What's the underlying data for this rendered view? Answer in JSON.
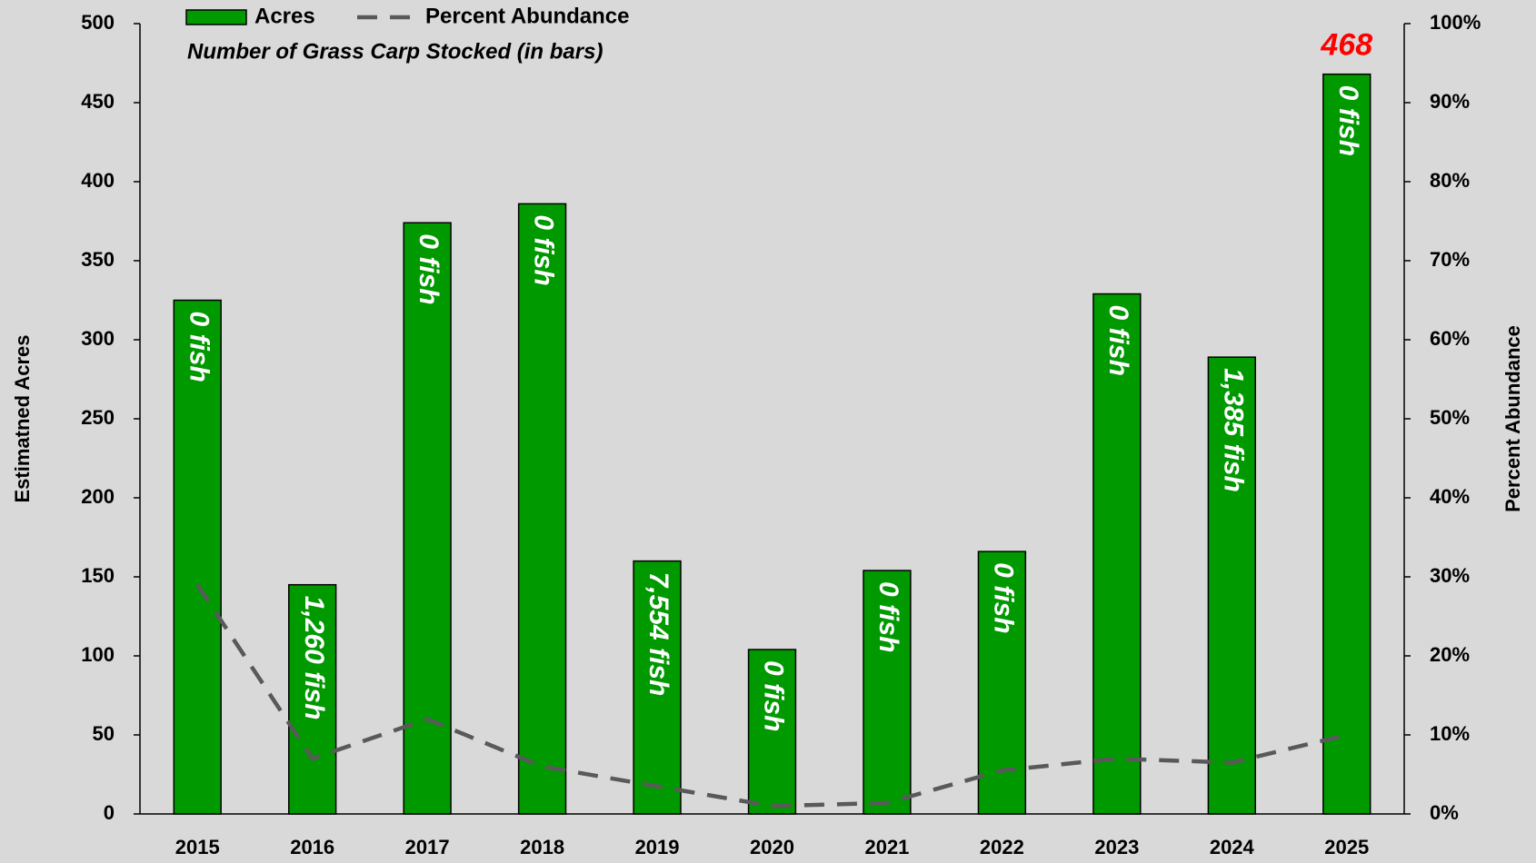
{
  "chart_data": {
    "type": "bar",
    "subtitle": "Number of Grass Carp Stocked (in bars)",
    "y_label": "Estimatned Acres",
    "y2_label": "Percent Abundance",
    "categories": [
      "2015",
      "2016",
      "2017",
      "2018",
      "2019",
      "2020",
      "2021",
      "2022",
      "2023",
      "2024",
      "2025"
    ],
    "series": [
      {
        "name": "Acres",
        "type": "bar",
        "color": "#009900",
        "values": [
          325,
          145,
          374,
          386,
          160,
          104,
          154,
          166,
          329,
          289,
          468
        ],
        "value_labels": [
          null,
          null,
          null,
          null,
          null,
          null,
          null,
          null,
          null,
          null,
          "468"
        ],
        "bar_annotations": [
          "0 fish",
          "1,260 fish",
          "0 fish",
          "0 fish",
          "7,554 fish",
          "0 fish",
          "0 fish",
          "0 fish",
          "0 fish",
          "1,385 fish",
          "0 fish"
        ]
      },
      {
        "name": "Percent Abundance",
        "type": "line",
        "axis": "y2",
        "color": "#595959",
        "values": [
          29,
          7,
          12,
          6,
          3.5,
          1,
          1.4,
          5.5,
          7,
          6.5,
          10
        ]
      }
    ],
    "ylim": [
      0,
      500
    ],
    "yticks": [
      0,
      50,
      100,
      150,
      200,
      250,
      300,
      350,
      400,
      450,
      500
    ],
    "y2lim": [
      0,
      100
    ],
    "y2ticks": [
      {
        "value": 0,
        "label": "0%"
      },
      {
        "value": 10,
        "label": "10%"
      },
      {
        "value": 20,
        "label": "20%"
      },
      {
        "value": 30,
        "label": "30%"
      },
      {
        "value": 40,
        "label": "40%"
      },
      {
        "value": 50,
        "label": "50%"
      },
      {
        "value": 60,
        "label": "60%"
      },
      {
        "value": 70,
        "label": "70%"
      },
      {
        "value": 80,
        "label": "80%"
      },
      {
        "value": 90,
        "label": "90%"
      },
      {
        "value": 100,
        "label": "100%"
      }
    ]
  }
}
